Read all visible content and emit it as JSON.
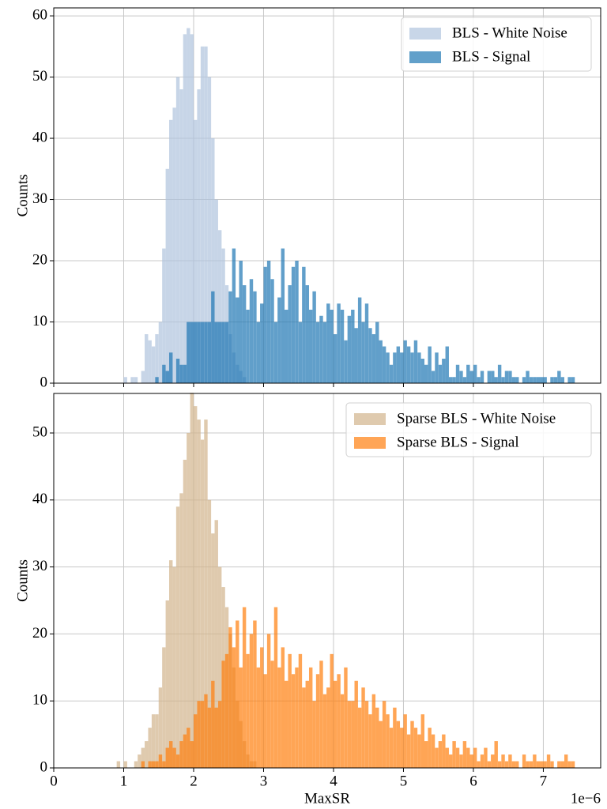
{
  "chart_data": [
    {
      "type": "histogram",
      "ylabel": "Counts",
      "xlim": [
        0,
        7.82
      ],
      "ylim": [
        0,
        61.3
      ],
      "xticks": [
        0,
        1,
        2,
        3,
        4,
        5,
        6,
        7
      ],
      "show_xtick_labels": false,
      "yticks": [
        0,
        10,
        20,
        30,
        40,
        50,
        60
      ],
      "grid": true,
      "legend": "upper right",
      "series": [
        {
          "name": "BLS - White Noise",
          "color": "#b0c4de",
          "alpha": 0.7,
          "bins": [
            1.0,
            1.05,
            1.1,
            1.15,
            1.2,
            1.25,
            1.3,
            1.35,
            1.4,
            1.45,
            1.5,
            1.55,
            1.6,
            1.65,
            1.7,
            1.75,
            1.8,
            1.85,
            1.9,
            1.95,
            2.0,
            2.05,
            2.1,
            2.15,
            2.2,
            2.25,
            2.3,
            2.35,
            2.4,
            2.45,
            2.5,
            2.55,
            2.6,
            2.65,
            2.7,
            2.75
          ],
          "values": [
            1,
            0,
            1,
            1,
            0,
            2,
            8,
            7,
            6,
            8,
            10,
            22,
            35,
            43,
            45,
            50,
            48,
            57,
            58,
            57,
            43,
            48,
            55,
            55,
            50,
            40,
            30,
            25,
            22,
            16,
            8,
            5,
            3,
            2,
            1
          ]
        },
        {
          "name": "BLS - Signal",
          "color": "#1f77b4",
          "alpha": 0.7,
          "bins": [
            1.45,
            1.5,
            1.55,
            1.6,
            1.65,
            1.7,
            1.75,
            1.8,
            1.85,
            1.9,
            1.95,
            2.0,
            2.05,
            2.1,
            2.15,
            2.2,
            2.25,
            2.3,
            2.35,
            2.4,
            2.45,
            2.5,
            2.55,
            2.6,
            2.65,
            2.7,
            2.75,
            2.8,
            2.85,
            2.9,
            2.95,
            3.0,
            3.05,
            3.1,
            3.15,
            3.2,
            3.25,
            3.3,
            3.35,
            3.4,
            3.45,
            3.5,
            3.55,
            3.6,
            3.65,
            3.7,
            3.75,
            3.8,
            3.85,
            3.9,
            3.95,
            4.0,
            4.05,
            4.1,
            4.15,
            4.2,
            4.25,
            4.3,
            4.35,
            4.4,
            4.45,
            4.5,
            4.55,
            4.6,
            4.65,
            4.7,
            4.75,
            4.8,
            4.85,
            4.9,
            4.95,
            5.0,
            5.05,
            5.1,
            5.15,
            5.2,
            5.25,
            5.3,
            5.35,
            5.4,
            5.45,
            5.5,
            5.55,
            5.6,
            5.65,
            5.7,
            5.75,
            5.8,
            5.85,
            5.9,
            5.95,
            6.0,
            6.05,
            6.1,
            6.15,
            6.2,
            6.25,
            6.3,
            6.35,
            6.4,
            6.45,
            6.5,
            6.55,
            6.6,
            6.65,
            6.7,
            6.75,
            6.8,
            6.85,
            6.9,
            6.95,
            7.0,
            7.05,
            7.1,
            7.15,
            7.2,
            7.25,
            7.3,
            7.35,
            7.4,
            7.45
          ],
          "values": [
            1,
            0,
            3,
            2,
            5,
            0,
            4,
            3,
            3,
            10,
            10,
            10,
            10,
            10,
            10,
            10,
            15,
            10,
            10,
            10,
            10,
            15,
            22,
            14,
            20,
            16,
            12,
            17,
            15,
            10,
            13,
            19,
            20,
            17,
            10,
            14,
            22,
            12,
            16,
            19,
            20,
            10,
            19,
            16,
            12,
            15,
            10,
            11,
            10,
            13,
            12,
            8,
            13,
            12,
            7,
            11,
            12,
            9,
            14,
            10,
            13,
            9,
            8,
            10,
            7,
            6,
            5,
            3,
            5,
            6,
            5,
            7,
            6,
            5,
            7,
            5,
            4,
            3,
            6,
            2,
            5,
            3,
            4,
            6,
            1,
            1,
            3,
            2,
            1,
            3,
            2,
            3,
            1,
            2,
            0,
            2,
            2,
            1,
            3,
            1,
            2,
            2,
            1,
            1,
            0,
            1,
            2,
            1,
            1,
            1,
            1,
            1,
            0,
            1,
            1,
            2,
            1,
            0,
            1,
            1
          ]
        }
      ]
    },
    {
      "type": "histogram",
      "ylabel": "Counts",
      "xlabel": "MaxSR",
      "x_offset_label": "1e−6",
      "xlim": [
        0,
        7.82
      ],
      "ylim": [
        0,
        55.9
      ],
      "xticks": [
        0,
        1,
        2,
        3,
        4,
        5,
        6,
        7
      ],
      "show_xtick_labels": true,
      "yticks": [
        0,
        10,
        20,
        30,
        40,
        50
      ],
      "grid": true,
      "legend": "upper right",
      "series": [
        {
          "name": "Sparse BLS - White Noise",
          "color": "#d2b48c",
          "alpha": 0.7,
          "bins": [
            0.9,
            0.95,
            1.0,
            1.05,
            1.1,
            1.15,
            1.2,
            1.25,
            1.3,
            1.35,
            1.4,
            1.45,
            1.5,
            1.55,
            1.6,
            1.65,
            1.7,
            1.75,
            1.8,
            1.85,
            1.9,
            1.95,
            2.0,
            2.05,
            2.1,
            2.15,
            2.2,
            2.25,
            2.3,
            2.35,
            2.4,
            2.45,
            2.5,
            2.55,
            2.6,
            2.65,
            2.7,
            2.75,
            2.8,
            2.85,
            2.9
          ],
          "values": [
            1,
            0,
            1,
            0,
            0,
            1,
            2,
            3,
            4,
            6,
            8,
            8,
            12,
            18,
            25,
            31,
            30,
            39,
            41,
            46,
            50,
            56,
            54,
            52,
            49,
            52,
            40,
            35,
            37,
            30,
            27,
            24,
            20,
            15,
            10,
            7,
            4,
            2,
            1,
            1
          ]
        },
        {
          "name": "Sparse BLS - Signal",
          "color": "#ff7f0e",
          "alpha": 0.7,
          "bins": [
            1.25,
            1.3,
            1.35,
            1.4,
            1.45,
            1.5,
            1.55,
            1.6,
            1.65,
            1.7,
            1.75,
            1.8,
            1.85,
            1.9,
            1.95,
            2.0,
            2.05,
            2.1,
            2.15,
            2.2,
            2.25,
            2.3,
            2.35,
            2.4,
            2.45,
            2.5,
            2.55,
            2.6,
            2.65,
            2.7,
            2.75,
            2.8,
            2.85,
            2.9,
            2.95,
            3.0,
            3.05,
            3.1,
            3.15,
            3.2,
            3.25,
            3.3,
            3.35,
            3.4,
            3.45,
            3.5,
            3.55,
            3.6,
            3.65,
            3.7,
            3.75,
            3.8,
            3.85,
            3.9,
            3.95,
            4.0,
            4.05,
            4.1,
            4.15,
            4.2,
            4.25,
            4.3,
            4.35,
            4.4,
            4.45,
            4.5,
            4.55,
            4.6,
            4.65,
            4.7,
            4.75,
            4.8,
            4.85,
            4.9,
            4.95,
            5.0,
            5.05,
            5.1,
            5.15,
            5.2,
            5.25,
            5.3,
            5.35,
            5.4,
            5.45,
            5.5,
            5.55,
            5.6,
            5.65,
            5.7,
            5.75,
            5.8,
            5.85,
            5.9,
            5.95,
            6.0,
            6.05,
            6.1,
            6.15,
            6.2,
            6.25,
            6.3,
            6.35,
            6.4,
            6.45,
            6.5,
            6.55,
            6.6,
            6.65,
            6.7,
            6.75,
            6.8,
            6.85,
            6.9,
            6.95,
            7.0,
            7.05,
            7.1,
            7.15,
            7.2,
            7.25,
            7.3,
            7.35,
            7.4,
            7.45
          ],
          "values": [
            1,
            0,
            1,
            1,
            1,
            2,
            1,
            3,
            4,
            3,
            2,
            4,
            5,
            6,
            4,
            8,
            10,
            10,
            11,
            9,
            13,
            9,
            10,
            16,
            17,
            21,
            18,
            22,
            15,
            24,
            17,
            20,
            22,
            15,
            18,
            14,
            20,
            16,
            24,
            15,
            18,
            13,
            17,
            14,
            15,
            17,
            12,
            13,
            15,
            10,
            14,
            16,
            11,
            12,
            17,
            13,
            14,
            11,
            15,
            10,
            10,
            13,
            9,
            12,
            10,
            8,
            11,
            9,
            7,
            10,
            8,
            6,
            9,
            7,
            6,
            8,
            5,
            7,
            6,
            5,
            8,
            4,
            6,
            5,
            3,
            4,
            5,
            3,
            2,
            4,
            3,
            2,
            4,
            3,
            2,
            3,
            1,
            2,
            3,
            1,
            2,
            4,
            1,
            2,
            1,
            2,
            1,
            1,
            0,
            2,
            1,
            1,
            2,
            1,
            1,
            1,
            2,
            1,
            0,
            1,
            1,
            2,
            1,
            1
          ]
        }
      ]
    }
  ]
}
